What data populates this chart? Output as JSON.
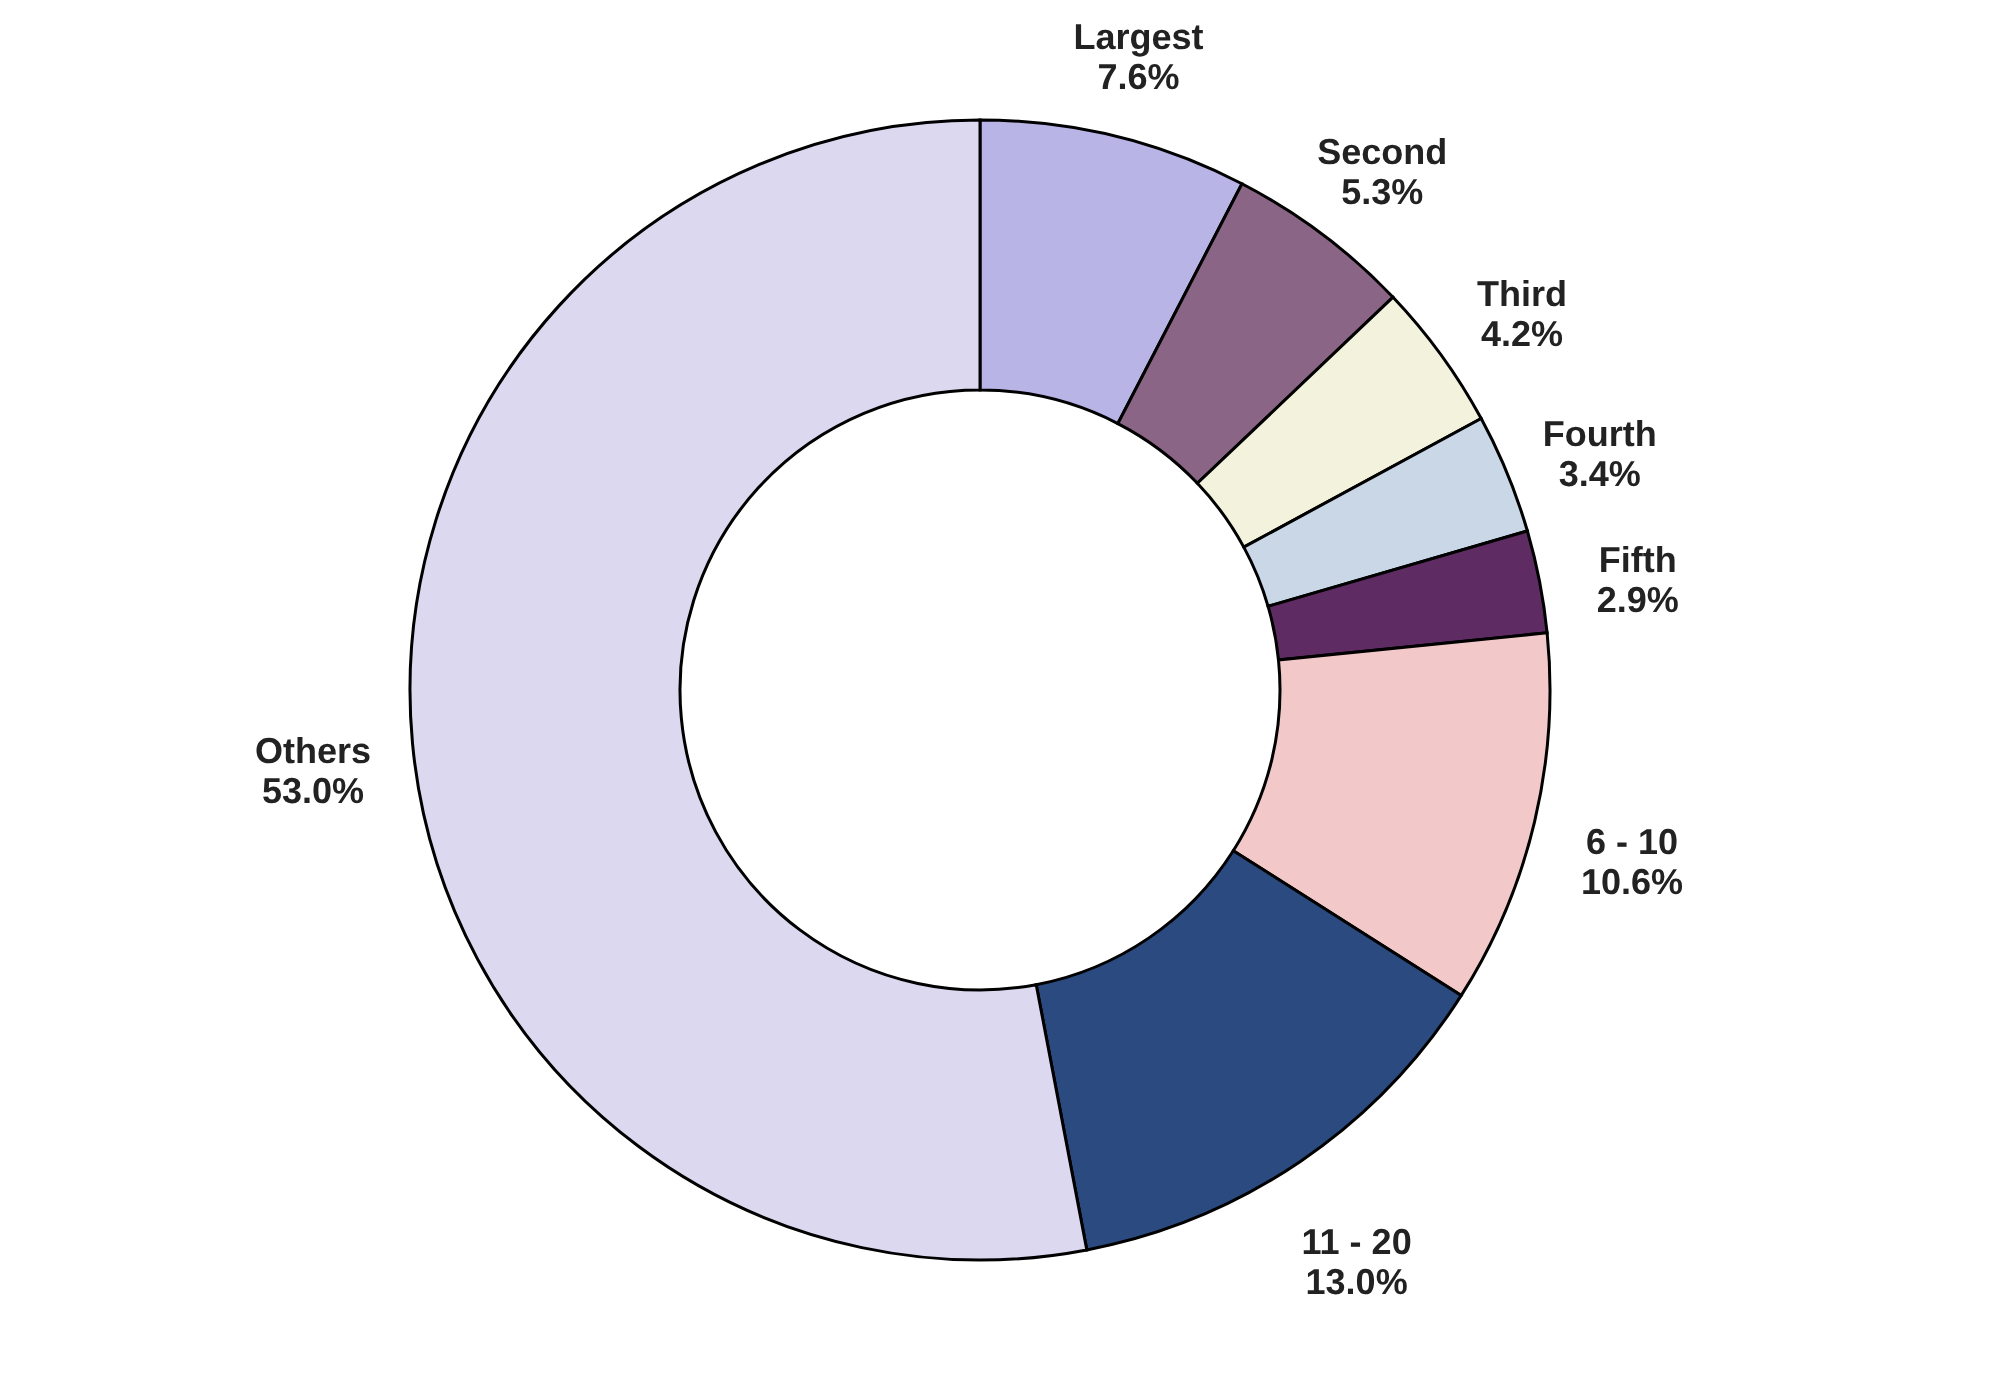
{
  "chart_data": {
    "type": "donut",
    "categories": [
      "Largest",
      "Second",
      "Third",
      "Fourth",
      "Fifth",
      "6 - 10",
      "11 - 20",
      "Others"
    ],
    "values": [
      7.6,
      5.3,
      4.2,
      3.4,
      2.9,
      10.6,
      13.0,
      53.0
    ],
    "value_labels": [
      "7.6%",
      "5.3%",
      "4.2%",
      "3.4%",
      "2.9%",
      "10.6%",
      "13.0%",
      "53.0%"
    ],
    "colors": [
      "#b8b4e6",
      "#8a6585",
      "#f3f2dc",
      "#c9d7e6",
      "#5e2c62",
      "#f2c9c8",
      "#2a4a80",
      "#dcd8ef"
    ],
    "legend": false
  }
}
